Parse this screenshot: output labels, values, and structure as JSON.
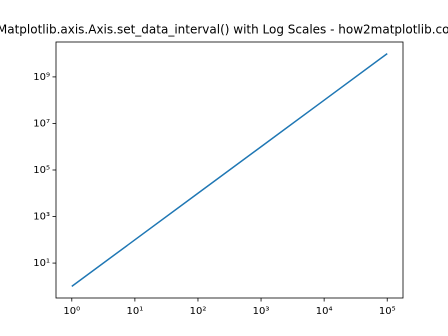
{
  "chart_data": {
    "type": "line",
    "title": "Matplotlib.axis.Axis.set_data_interval() with Log Scales - how2matplotlib.com",
    "x": [
      1,
      10,
      100,
      1000,
      10000,
      100000
    ],
    "series": [
      {
        "color": "#1f77b4",
        "values": [
          1,
          100,
          10000,
          1000000,
          100000000,
          10000000000
        ]
      }
    ],
    "xscale": "log",
    "yscale": "log",
    "xlim": [
      0.562,
      177828
    ],
    "ylim": [
      0.316,
      31600000000
    ],
    "xticks": [
      {
        "value": 1,
        "label": "10⁰"
      },
      {
        "value": 10,
        "label": "10¹"
      },
      {
        "value": 100,
        "label": "10²"
      },
      {
        "value": 1000,
        "label": "10³"
      },
      {
        "value": 10000,
        "label": "10⁴"
      },
      {
        "value": 100000,
        "label": "10⁵"
      }
    ],
    "yticks": [
      {
        "value": 10,
        "label": "10¹"
      },
      {
        "value": 1000,
        "label": "10³"
      },
      {
        "value": 100000,
        "label": "10⁵"
      },
      {
        "value": 10000000,
        "label": "10⁷"
      },
      {
        "value": 1000000000,
        "label": "10⁹"
      }
    ],
    "grid": false
  }
}
